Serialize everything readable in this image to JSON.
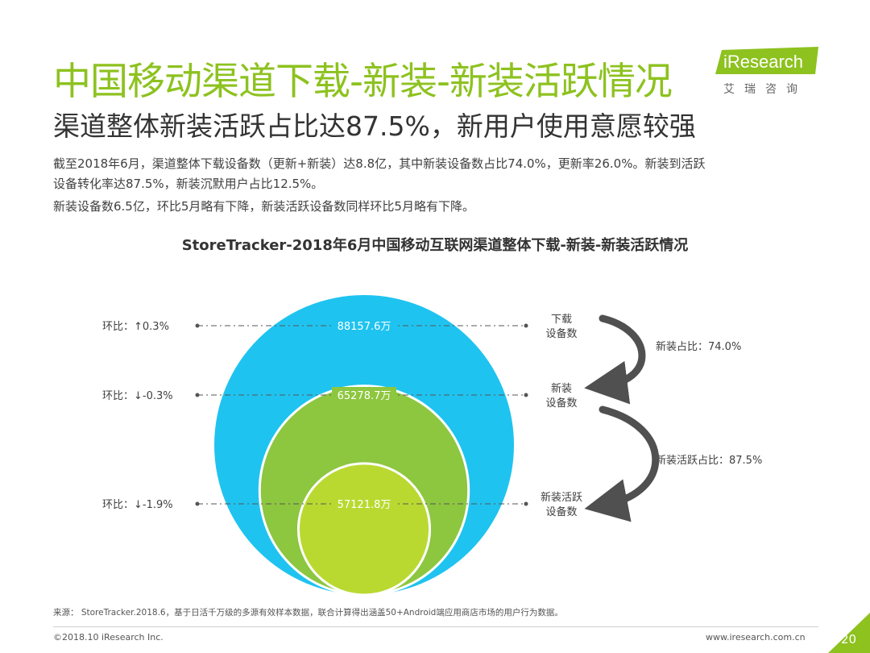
{
  "header": {
    "title": "中国移动渠道下载-新装-新装活跃情况",
    "subtitle": "渠道整体新装活跃占比达87.5%，新用户使用意愿较强",
    "summary_lines": [
      "截至2018年6月，渠道整体下载设备数（更新+新装）达8.8亿，其中新装设备数占比74.0%，更新率26.0%。新装到活跃",
      "设备转化率达87.5%，新装沉默用户占比12.5%。",
      "新装设备数6.5亿，环比5月略有下降，新装活跃设备数同样环比5月略有下降。"
    ]
  },
  "logo": {
    "wordmark": "iResearch",
    "cn": "艾瑞咨询",
    "color": "#8dc21f"
  },
  "chart_data": {
    "type": "nested-circle",
    "title": "StoreTracker-2018年6月中国移动互联网渠道整体下载-新装-新装活跃情况",
    "levels": [
      {
        "label": "下载设备数",
        "label_lines": [
          "下载",
          "设备数"
        ],
        "value": 88157.6,
        "value_text": "88157.6万",
        "mom": "环比：↑0.3%",
        "color": "#1fc3f0"
      },
      {
        "label": "新装设备数",
        "label_lines": [
          "新装",
          "设备数"
        ],
        "value": 65278.7,
        "value_text": "65278.7万",
        "mom": "环比：↓-0.3%",
        "color": "#8dc63f"
      },
      {
        "label": "新装活跃设备数",
        "label_lines": [
          "新装活跃",
          "设备数"
        ],
        "value": 57121.8,
        "value_text": "57121.8万",
        "mom": "环比：↓-1.9%",
        "color": "#b9d931"
      }
    ],
    "ratios": [
      {
        "text": "新装占比：74.0%",
        "value": 74.0
      },
      {
        "text": "新装活跃占比：87.5%",
        "value": 87.5
      }
    ],
    "unit": "万"
  },
  "footer": {
    "source": "来源： StoreTracker.2018.6，基于日活千万级的多源有效样本数据，联合计算得出涵盖50+Android端应用商店市场的用户行为数据。",
    "copyright": "©2018.10 iResearch Inc.",
    "site": "www.iresearch.com.cn",
    "page_number": "20",
    "accent": "#8dc21f"
  }
}
